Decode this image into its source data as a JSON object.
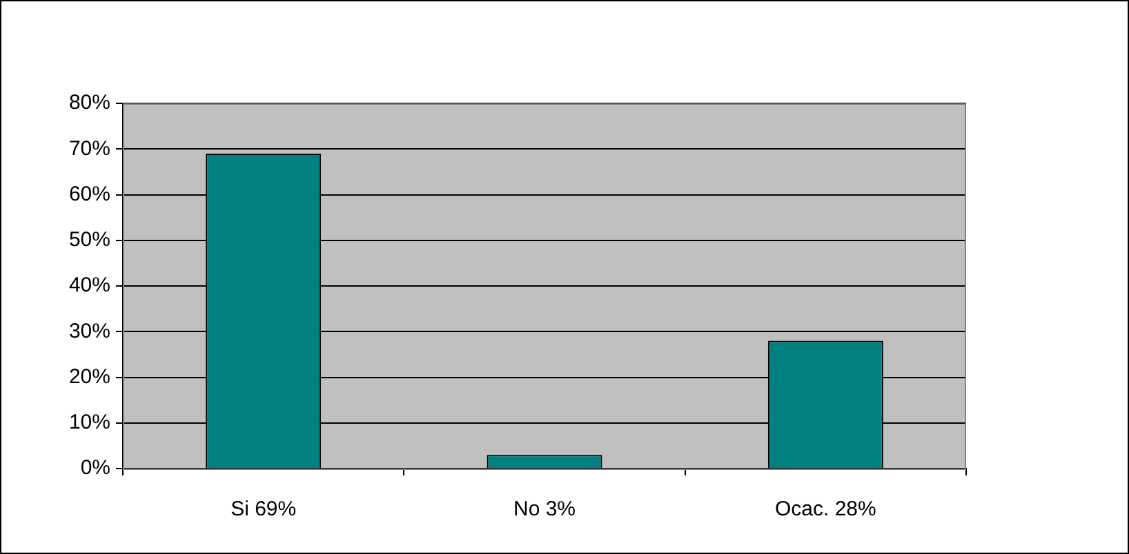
{
  "chart_data": {
    "type": "bar",
    "categories": [
      "Si 69%",
      "No 3%",
      "Ocac. 28%"
    ],
    "values": [
      69,
      3,
      28
    ],
    "color": "#008080",
    "ylim": [
      0,
      80
    ],
    "yticks": [
      {
        "value": 0,
        "label": "0%"
      },
      {
        "value": 10,
        "label": "10%"
      },
      {
        "value": 20,
        "label": "20%"
      },
      {
        "value": 30,
        "label": "30%"
      },
      {
        "value": 40,
        "label": "40%"
      },
      {
        "value": 50,
        "label": "50%"
      },
      {
        "value": 60,
        "label": "60%"
      },
      {
        "value": 70,
        "label": "70%"
      },
      {
        "value": 80,
        "label": "80%"
      }
    ],
    "grid": "y",
    "legend": false
  }
}
